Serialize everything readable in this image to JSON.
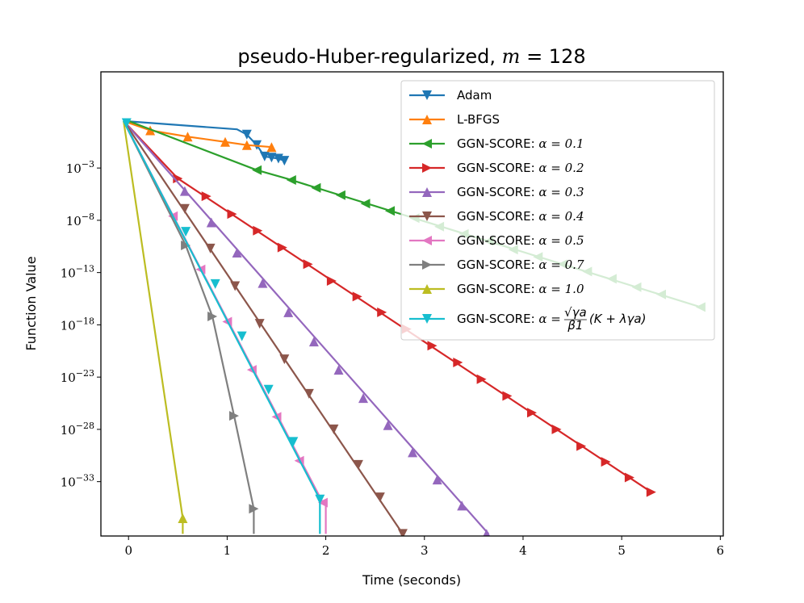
{
  "chart_data": {
    "type": "line",
    "title": "pseudo-Huber-regularized, m = 128",
    "title_main": "pseudo-Huber-regularized, ",
    "title_var": "m",
    "title_eq": " = 128",
    "xlabel": "Time (seconds)",
    "ylabel": "Function Value",
    "y_scale": "log",
    "xlim": [
      -0.28,
      6.03
    ],
    "ylim_log10": [
      -38.2,
      6.2
    ],
    "x_ticks": [
      0,
      1,
      2,
      3,
      4,
      5,
      6
    ],
    "x_tick_labels": [
      "0",
      "1",
      "2",
      "3",
      "4",
      "5",
      "6"
    ],
    "y_ticks_log10": [
      -3,
      -8,
      -13,
      -18,
      -23,
      -28,
      -33
    ],
    "y_tick_labels": [
      "10",
      "10",
      "10",
      "10",
      "10",
      "10",
      "10"
    ],
    "y_tick_exponents": [
      "−3",
      "−8",
      "−13",
      "−18",
      "−23",
      "−28",
      "−33"
    ],
    "legend_position": "upper right",
    "series": [
      {
        "name": "Adam",
        "legend_prefix": "Adam",
        "legend_math": "",
        "legend_extra": "",
        "color": "#1f77b4",
        "marker": "triangle-down",
        "x": [
          -0.05,
          1.1,
          1.2,
          1.3,
          1.38,
          1.45,
          1.52,
          1.58
        ],
        "y_log10": [
          1.5,
          0.7,
          0.2,
          -0.8,
          -1.9,
          -2.0,
          -2.1,
          -2.3
        ],
        "marker_x": [
          1.2,
          1.3,
          1.38,
          1.45,
          1.52,
          1.58
        ],
        "marker_y_log10": [
          0.2,
          -0.8,
          -1.9,
          -2.0,
          -2.1,
          -2.3
        ]
      },
      {
        "name": "L-BFGS",
        "legend_prefix": "L-BFGS",
        "legend_math": "",
        "legend_extra": "",
        "color": "#ff7f0e",
        "marker": "triangle-up",
        "x": [
          -0.05,
          0.22,
          0.6,
          0.98,
          1.2,
          1.45
        ],
        "y_log10": [
          1.5,
          0.6,
          0.0,
          -0.5,
          -0.8,
          -1.0
        ],
        "marker_x": [
          0.22,
          0.6,
          0.98,
          1.2,
          1.45
        ],
        "marker_y_log10": [
          0.6,
          0.0,
          -0.5,
          -0.8,
          -1.0
        ]
      },
      {
        "name": "GGN-SCORE: α = 0.1",
        "legend_prefix": "GGN-SCORE: ",
        "legend_math": "α = 0.1",
        "legend_extra": "",
        "color": "#2ca02c",
        "marker": "triangle-left",
        "x": [
          0,
          1.3,
          1.6,
          5.8
        ],
        "y_log10": [
          1.5,
          -3.2,
          -4.0,
          -16.3
        ],
        "marker_x": [
          1.3,
          1.65,
          1.9,
          2.15,
          2.4,
          2.65,
          2.9,
          3.15,
          3.4,
          3.65,
          3.9,
          4.15,
          4.4,
          4.65,
          4.9,
          5.15,
          5.4,
          5.8
        ],
        "marker_y_log10": [
          -3.2,
          -4.15,
          -4.9,
          -5.6,
          -6.4,
          -7.1,
          -7.8,
          -8.6,
          -9.3,
          -10.0,
          -10.8,
          -11.5,
          -12.2,
          -12.9,
          -13.6,
          -14.4,
          -15.1,
          -16.3
        ]
      },
      {
        "name": "GGN-SCORE: α = 0.2",
        "legend_prefix": "GGN-SCORE: ",
        "legend_math": "α = 0.2",
        "legend_extra": "",
        "color": "#d62728",
        "marker": "triangle-right",
        "x": [
          -0.05,
          0.5,
          5.3
        ],
        "y_log10": [
          1.5,
          -4.0,
          -34.0
        ],
        "marker_x": [
          0.5,
          0.79,
          1.05,
          1.31,
          1.56,
          1.82,
          2.06,
          2.32,
          2.57,
          2.82,
          3.08,
          3.34,
          3.58,
          3.84,
          4.09,
          4.34,
          4.59,
          4.84,
          5.08,
          5.3
        ],
        "marker_y_log10": [
          -4.0,
          -5.7,
          -7.4,
          -9.0,
          -10.6,
          -12.2,
          -13.8,
          -15.3,
          -16.8,
          -18.4,
          -20.0,
          -21.6,
          -23.2,
          -24.8,
          -26.4,
          -28.0,
          -29.6,
          -31.1,
          -32.6,
          -34.0
        ]
      },
      {
        "name": "GGN-SCORE: α = 0.3",
        "legend_prefix": "GGN-SCORE: ",
        "legend_math": "α = 0.3",
        "legend_extra": "",
        "color": "#9467bd",
        "marker": "triangle-up",
        "x": [
          -0.05,
          3.65
        ],
        "y_log10": [
          1.5,
          -38.0
        ],
        "marker_x": [
          0.57,
          0.84,
          1.1,
          1.36,
          1.62,
          1.88,
          2.13,
          2.38,
          2.63,
          2.88,
          3.13,
          3.38,
          3.63
        ],
        "marker_y_log10": [
          -5.2,
          -8.2,
          -11.1,
          -14.0,
          -16.8,
          -19.6,
          -22.3,
          -25.0,
          -27.6,
          -30.2,
          -32.8,
          -35.3,
          -38.0
        ]
      },
      {
        "name": "GGN-SCORE: α = 0.4",
        "legend_prefix": "GGN-SCORE: ",
        "legend_math": "α = 0.4",
        "legend_extra": "",
        "color": "#8c564b",
        "marker": "triangle-down",
        "x": [
          -0.05,
          2.78
        ],
        "y_log10": [
          1.5,
          -38.0
        ],
        "marker_x": [
          0.57,
          0.83,
          1.08,
          1.33,
          1.58,
          1.83,
          2.08,
          2.33,
          2.55,
          2.78
        ],
        "marker_y_log10": [
          -6.9,
          -10.7,
          -14.3,
          -17.9,
          -21.3,
          -24.6,
          -28.0,
          -31.4,
          -34.5,
          -38.0
        ]
      },
      {
        "name": "GGN-SCORE: α = 0.5",
        "legend_prefix": "GGN-SCORE: ",
        "legend_math": "α = 0.5",
        "legend_extra": "",
        "color": "#e377c2",
        "marker": "triangle-left",
        "x": [
          -0.05,
          1.97,
          2.0,
          2.0
        ],
        "y_log10": [
          1.5,
          -35.0,
          -35.3,
          -38.0
        ],
        "marker_x": [
          0.45,
          0.73,
          1.0,
          1.25,
          1.5,
          1.73,
          1.97
        ],
        "marker_y_log10": [
          -7.6,
          -12.7,
          -17.7,
          -22.3,
          -26.8,
          -31.0,
          -35.0
        ]
      },
      {
        "name": "GGN-SCORE: α = 0.7",
        "legend_prefix": "GGN-SCORE: ",
        "legend_math": "α = 0.7",
        "legend_extra": "",
        "color": "#7f7f7f",
        "marker": "triangle-right",
        "x": [
          -0.05,
          0.58,
          0.85,
          1.07,
          1.27,
          1.27
        ],
        "y_log10": [
          1.5,
          -10.4,
          -17.2,
          -26.7,
          -35.6,
          -38.0
        ],
        "marker_x": [
          0.58,
          0.85,
          1.07,
          1.27
        ],
        "marker_y_log10": [
          -10.4,
          -17.2,
          -26.7,
          -35.6
        ]
      },
      {
        "name": "GGN-SCORE: α = 1.0",
        "legend_prefix": "GGN-SCORE: ",
        "legend_math": "α = 1.0",
        "legend_extra": "",
        "color": "#bcbd22",
        "marker": "triangle-up",
        "x": [
          -0.05,
          0.55,
          0.55
        ],
        "y_log10": [
          1.5,
          -36.5,
          -38.0
        ],
        "marker_x": [
          0.55
        ],
        "marker_y_log10": [
          -36.5
        ]
      },
      {
        "name": "GGN-SCORE: α = (√γa / β1)(K + λγa)",
        "legend_prefix": "GGN-SCORE: ",
        "legend_math": "α = ",
        "legend_extra": "(K + λγa)",
        "legend_frac_num": "√γa",
        "legend_frac_den": "β1",
        "color": "#17becf",
        "marker": "triangle-down",
        "x": [
          -0.05,
          1.94,
          1.94
        ],
        "y_log10": [
          1.5,
          -34.7,
          -38.0
        ],
        "marker_x": [
          -0.02,
          0.58,
          0.88,
          1.15,
          1.42,
          1.67,
          1.94
        ],
        "marker_y_log10": [
          1.3,
          -9.1,
          -14.1,
          -19.1,
          -24.2,
          -29.2,
          -34.7
        ]
      }
    ]
  }
}
